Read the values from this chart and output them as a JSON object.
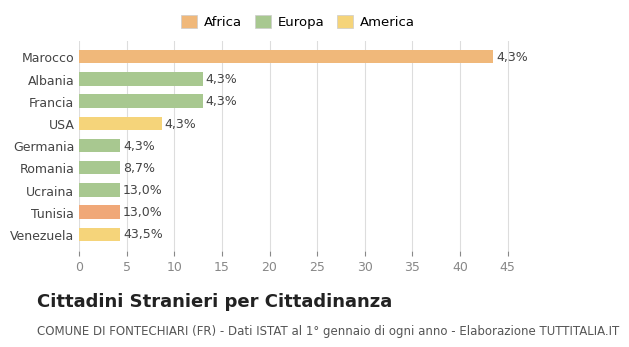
{
  "categories": [
    "Venezuela",
    "Tunisia",
    "Ucraina",
    "Romania",
    "Germania",
    "USA",
    "Francia",
    "Albania",
    "Marocco"
  ],
  "values": [
    4.3,
    4.3,
    4.3,
    4.3,
    4.3,
    8.7,
    13.0,
    13.0,
    43.5
  ],
  "colors": [
    "#f5d47a",
    "#f0a878",
    "#a8c890",
    "#a8c890",
    "#a8c890",
    "#f5d47a",
    "#a8c890",
    "#a8c890",
    "#f0b87a"
  ],
  "continents": [
    "America",
    "Africa",
    "Europa",
    "Europa",
    "Europa",
    "America",
    "Europa",
    "Europa",
    "Africa"
  ],
  "legend_labels": [
    "Africa",
    "Europa",
    "America"
  ],
  "legend_colors": [
    "#f0b87a",
    "#a8c890",
    "#f5d47a"
  ],
  "title": "Cittadini Stranieri per Cittadinanza",
  "subtitle": "COMUNE DI FONTECHIARI (FR) - Dati ISTAT al 1° gennaio di ogni anno - Elaborazione TUTTITALIA.IT",
  "xlim": [
    0,
    46
  ],
  "xticks": [
    0,
    5,
    10,
    15,
    20,
    25,
    30,
    35,
    40,
    45
  ],
  "label_format": [
    "43,5%",
    "13,0%",
    "13,0%",
    "8,7%",
    "4,3%",
    "4,3%",
    "4,3%",
    "4,3%",
    "4,3%"
  ],
  "bg_color": "#ffffff",
  "grid_color": "#dddddd",
  "bar_height": 0.6,
  "title_fontsize": 13,
  "subtitle_fontsize": 8.5,
  "tick_fontsize": 9,
  "label_fontsize": 9
}
